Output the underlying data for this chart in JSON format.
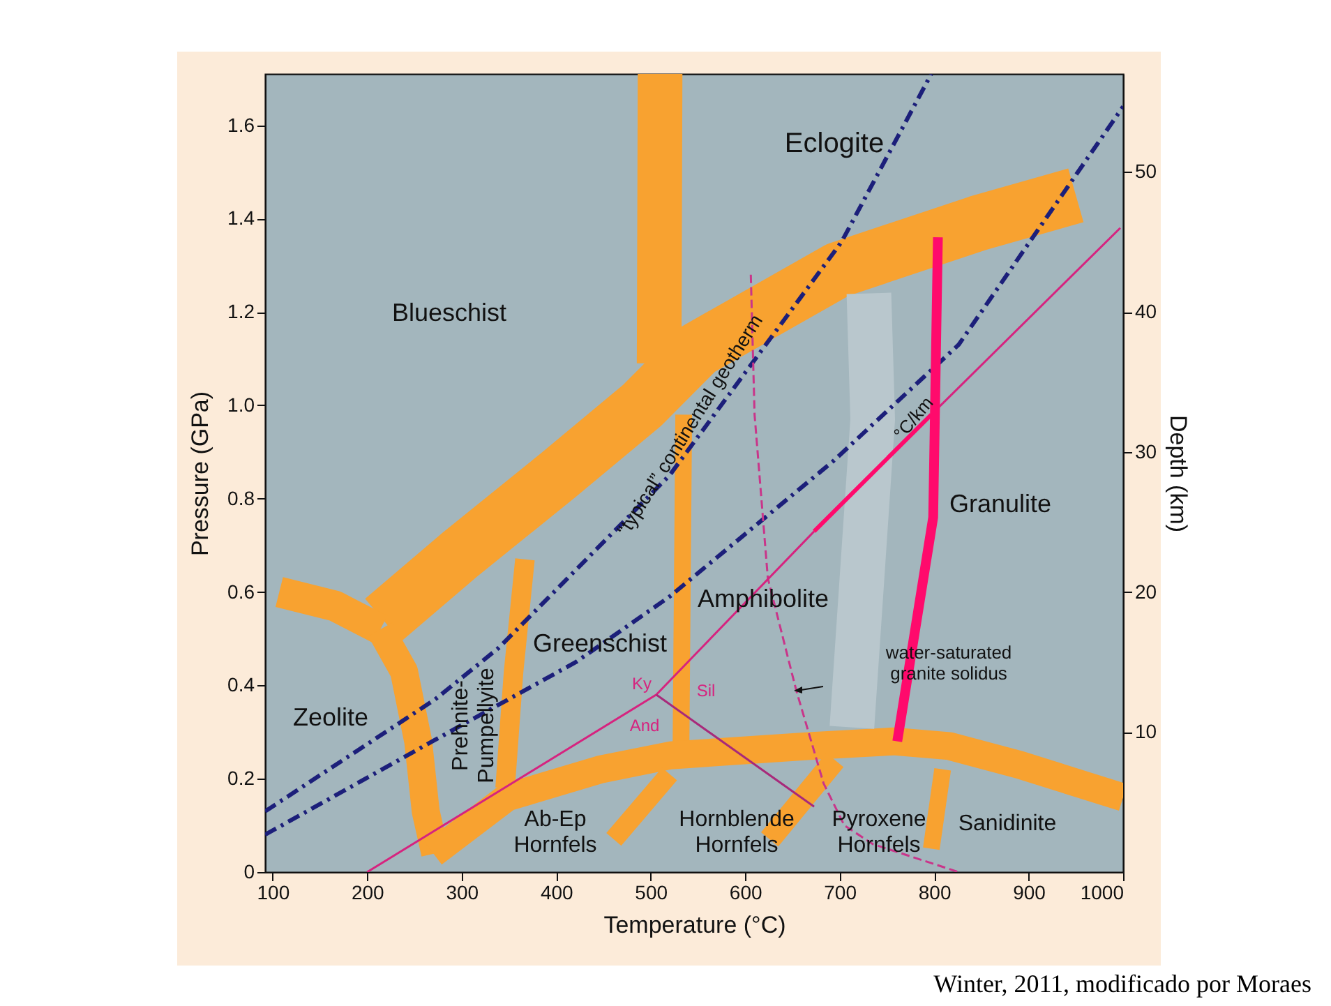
{
  "chart_data": {
    "type": "line",
    "xlabel": "Temperature (°C)",
    "ylabel": "Pressure (GPa)",
    "y2label": "Depth (km)",
    "xlim": [
      92,
      1000
    ],
    "xticks": [
      100,
      200,
      300,
      400,
      500,
      600,
      700,
      800,
      900,
      1000
    ],
    "ylim": [
      0,
      1.71
    ],
    "yticks": [
      0,
      0.2,
      0.4,
      0.6,
      0.8,
      {
        "value": 1,
        "label": "1.0"
      },
      1.2,
      1.4,
      1.6
    ],
    "y2lim": [
      0,
      57
    ],
    "y2ticks": [
      10,
      20,
      30,
      40,
      50
    ],
    "series": [
      {
        "type": "line",
        "color": "#f8a230",
        "x": [
          217,
          298,
          402,
          491,
          550,
          698,
          846,
          950
        ],
        "values": [
          0.54,
          0.68,
          0.85,
          1.0,
          1.12,
          1.29,
          1.39,
          1.45
        ]
      },
      {
        "type": "line",
        "color": "#f8a230",
        "x": [
          510,
          509
        ],
        "values": [
          1.71,
          1.09
        ]
      },
      {
        "type": "line",
        "color": "#f8a230",
        "x": [
          535,
          532
        ],
        "values": [
          0.98,
          0.24
        ]
      },
      {
        "type": "line",
        "color": "#f8a230",
        "x": [
          107,
          166,
          214
        ],
        "values": [
          0.6,
          0.57,
          0.52
        ]
      },
      {
        "type": "line",
        "color": "#f8a230",
        "x": [
          214,
          239,
          254,
          262,
          272
        ],
        "values": [
          0.52,
          0.43,
          0.28,
          0.13,
          0.04
        ]
      },
      {
        "type": "line",
        "color": "#f8a230",
        "x": [
          367,
          355,
          346
        ],
        "values": [
          0.67,
          0.43,
          0.18
        ]
      },
      {
        "type": "line",
        "color": "#f8a230",
        "x": [
          270,
          348,
          447,
          521,
          668,
          757,
          816,
          890,
          1000
        ],
        "values": [
          0.04,
          0.16,
          0.22,
          0.25,
          0.27,
          0.28,
          0.27,
          0.23,
          0.16
        ]
      },
      {
        "type": "line",
        "color": "#f8a230",
        "x": [
          461,
          520
        ],
        "values": [
          0.07,
          0.21
        ]
      },
      {
        "type": "line",
        "color": "#f8a230",
        "x": [
          626,
          695
        ],
        "values": [
          0.07,
          0.24
        ]
      },
      {
        "type": "line",
        "color": "#f8a230",
        "x": [
          797,
          809
        ],
        "values": [
          0.05,
          0.22
        ]
      },
      {
        "type": "line",
        "color": "#b9c7cd",
        "x": [
          731,
          735,
          725,
          713
        ],
        "values": [
          1.24,
          0.97,
          0.67,
          0.31
        ]
      },
      {
        "type": "line",
        "color": "#1c1f7a",
        "line_style": "dashed",
        "x": [
          92,
          272,
          339,
          520,
          702,
          797
        ],
        "values": [
          0.13,
          0.37,
          0.48,
          0.85,
          1.35,
          1.71
        ]
      },
      {
        "type": "line",
        "color": "#1c1f7a",
        "line_style": "dashed",
        "x": [
          92,
          269,
          421,
          520,
          693,
          826,
          1000
        ],
        "values": [
          0.08,
          0.28,
          0.45,
          0.59,
          0.88,
          1.13,
          1.64
        ]
      },
      {
        "type": "line",
        "color": "#c9358a",
        "line_style": "dashed",
        "x": [
          606,
          610,
          624,
          654,
          683,
          705,
          735,
          826
        ],
        "values": [
          1.28,
          0.98,
          0.63,
          0.39,
          0.19,
          0.1,
          0.06,
          0
        ]
      },
      {
        "type": "line",
        "color": "#d6237f",
        "x": [
          200,
          506,
          673
        ],
        "values": [
          0,
          0.38,
          0.73
        ]
      },
      {
        "type": "line",
        "color": "#ff0a6c",
        "x": [
          673,
          797
        ],
        "values": [
          0.73,
          0.98
        ]
      },
      {
        "type": "line",
        "color": "#d6237f",
        "x": [
          797,
          997
        ],
        "values": [
          0.98,
          1.38
        ]
      },
      {
        "type": "line",
        "color": "#a8297a",
        "x": [
          506,
          673
        ],
        "values": [
          0.38,
          0.14
        ]
      },
      {
        "type": "line",
        "color": "#ff0a6c",
        "x": [
          804,
          799,
          761
        ],
        "values": [
          1.36,
          0.76,
          0.28
        ]
      }
    ],
    "annotations": [
      "Eclogite",
      "Blueschist",
      "Zeolite",
      "Prehnite-\nPumpellyite",
      "Greenschist",
      "Amphibolite",
      "Granulite",
      "water-saturated\ngranite solidus",
      "Ab-Ep\nHornfels",
      "Hornblende\nHornfels",
      "Pyroxene\nHornfels",
      "Sanidinite",
      "Ky",
      "Sil",
      "And",
      "“typical” continental geotherm",
      "°C/km",
      "Winter, 2011, modificado por Moraes"
    ]
  }
}
